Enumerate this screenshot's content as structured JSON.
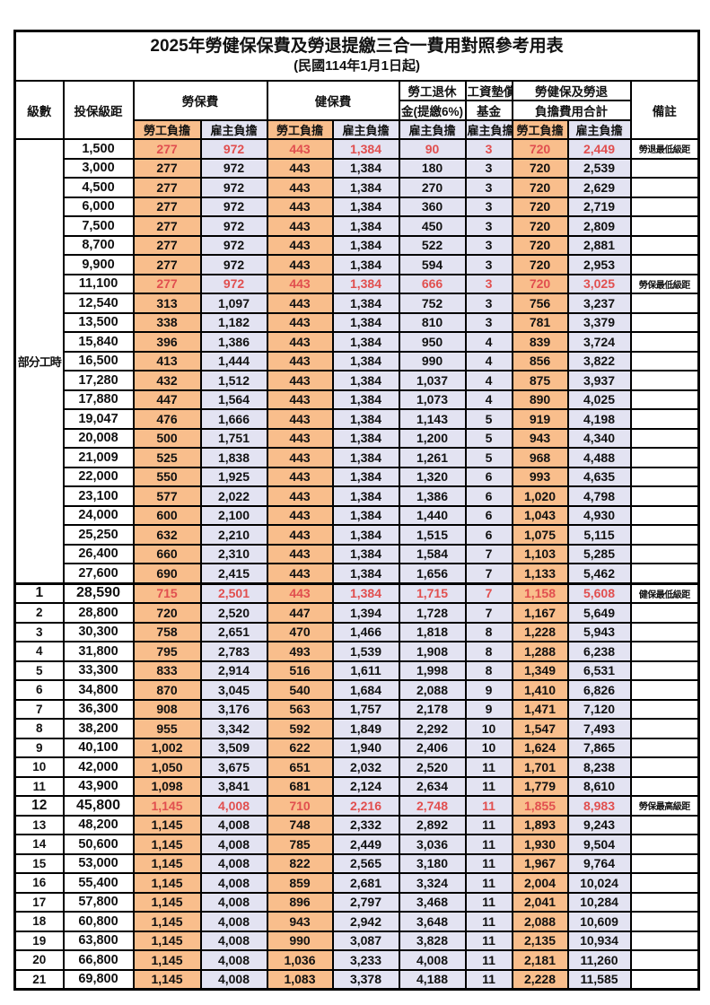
{
  "title": "2025年勞健保保費及勞退提繳三合一費用對照參考用表",
  "subtitle": "(民國114年1月1日起)",
  "colors": {
    "employee_column_bg": "#F9BE8C",
    "employer_column_bg": "#E3E3F2",
    "highlight_text": "#E14F4F",
    "grid_border": "#000000"
  },
  "header": {
    "level": "級數",
    "bracket": "投保級距",
    "labor_insurance": "勞保費",
    "health_insurance": "健保費",
    "pension_line1": "勞工退休",
    "pension_line2": "金(提繳6%)",
    "wage_fund_line1": "工資墊償",
    "wage_fund_line2": "基金",
    "total_line1": "勞健保及勞退",
    "total_line2": "負擔費用合計",
    "remark": "備註",
    "employee": "勞工負擔",
    "employer": "雇主負擔"
  },
  "part_time_label": "部分工時",
  "rows": [
    {
      "level": "",
      "bracket": "1,500",
      "values": [
        "277",
        "972",
        "443",
        "1,384",
        "90",
        "3",
        "720",
        "2,449"
      ],
      "note": "勞退最低級距",
      "red": true,
      "bold": false
    },
    {
      "level": "",
      "bracket": "3,000",
      "values": [
        "277",
        "972",
        "443",
        "1,384",
        "180",
        "3",
        "720",
        "2,539"
      ],
      "note": "",
      "red": false,
      "bold": false
    },
    {
      "level": "",
      "bracket": "4,500",
      "values": [
        "277",
        "972",
        "443",
        "1,384",
        "270",
        "3",
        "720",
        "2,629"
      ],
      "note": "",
      "red": false,
      "bold": false
    },
    {
      "level": "",
      "bracket": "6,000",
      "values": [
        "277",
        "972",
        "443",
        "1,384",
        "360",
        "3",
        "720",
        "2,719"
      ],
      "note": "",
      "red": false,
      "bold": false
    },
    {
      "level": "",
      "bracket": "7,500",
      "values": [
        "277",
        "972",
        "443",
        "1,384",
        "450",
        "3",
        "720",
        "2,809"
      ],
      "note": "",
      "red": false,
      "bold": false
    },
    {
      "level": "",
      "bracket": "8,700",
      "values": [
        "277",
        "972",
        "443",
        "1,384",
        "522",
        "3",
        "720",
        "2,881"
      ],
      "note": "",
      "red": false,
      "bold": false
    },
    {
      "level": "",
      "bracket": "9,900",
      "values": [
        "277",
        "972",
        "443",
        "1,384",
        "594",
        "3",
        "720",
        "2,953"
      ],
      "note": "",
      "red": false,
      "bold": false
    },
    {
      "level": "",
      "bracket": "11,100",
      "values": [
        "277",
        "972",
        "443",
        "1,384",
        "666",
        "3",
        "720",
        "3,025"
      ],
      "note": "勞保最低級距",
      "red": true,
      "bold": false
    },
    {
      "level": "",
      "bracket": "12,540",
      "values": [
        "313",
        "1,097",
        "443",
        "1,384",
        "752",
        "3",
        "756",
        "3,237"
      ],
      "note": "",
      "red": false,
      "bold": false
    },
    {
      "level": "",
      "bracket": "13,500",
      "values": [
        "338",
        "1,182",
        "443",
        "1,384",
        "810",
        "3",
        "781",
        "3,379"
      ],
      "note": "",
      "red": false,
      "bold": false
    },
    {
      "level": "",
      "bracket": "15,840",
      "values": [
        "396",
        "1,386",
        "443",
        "1,384",
        "950",
        "4",
        "839",
        "3,724"
      ],
      "note": "",
      "red": false,
      "bold": false
    },
    {
      "level": "",
      "bracket": "16,500",
      "values": [
        "413",
        "1,444",
        "443",
        "1,384",
        "990",
        "4",
        "856",
        "3,822"
      ],
      "note": "",
      "red": false,
      "bold": false
    },
    {
      "level": "",
      "bracket": "17,280",
      "values": [
        "432",
        "1,512",
        "443",
        "1,384",
        "1,037",
        "4",
        "875",
        "3,937"
      ],
      "note": "",
      "red": false,
      "bold": false
    },
    {
      "level": "",
      "bracket": "17,880",
      "values": [
        "447",
        "1,564",
        "443",
        "1,384",
        "1,073",
        "4",
        "890",
        "4,025"
      ],
      "note": "",
      "red": false,
      "bold": false
    },
    {
      "level": "",
      "bracket": "19,047",
      "values": [
        "476",
        "1,666",
        "443",
        "1,384",
        "1,143",
        "5",
        "919",
        "4,198"
      ],
      "note": "",
      "red": false,
      "bold": false
    },
    {
      "level": "",
      "bracket": "20,008",
      "values": [
        "500",
        "1,751",
        "443",
        "1,384",
        "1,200",
        "5",
        "943",
        "4,340"
      ],
      "note": "",
      "red": false,
      "bold": false
    },
    {
      "level": "",
      "bracket": "21,009",
      "values": [
        "525",
        "1,838",
        "443",
        "1,384",
        "1,261",
        "5",
        "968",
        "4,488"
      ],
      "note": "",
      "red": false,
      "bold": false
    },
    {
      "level": "",
      "bracket": "22,000",
      "values": [
        "550",
        "1,925",
        "443",
        "1,384",
        "1,320",
        "6",
        "993",
        "4,635"
      ],
      "note": "",
      "red": false,
      "bold": false
    },
    {
      "level": "",
      "bracket": "23,100",
      "values": [
        "577",
        "2,022",
        "443",
        "1,384",
        "1,386",
        "6",
        "1,020",
        "4,798"
      ],
      "note": "",
      "red": false,
      "bold": false
    },
    {
      "level": "",
      "bracket": "24,000",
      "values": [
        "600",
        "2,100",
        "443",
        "1,384",
        "1,440",
        "6",
        "1,043",
        "4,930"
      ],
      "note": "",
      "red": false,
      "bold": false
    },
    {
      "level": "",
      "bracket": "25,250",
      "values": [
        "632",
        "2,210",
        "443",
        "1,384",
        "1,515",
        "6",
        "1,075",
        "5,115"
      ],
      "note": "",
      "red": false,
      "bold": false
    },
    {
      "level": "",
      "bracket": "26,400",
      "values": [
        "660",
        "2,310",
        "443",
        "1,384",
        "1,584",
        "7",
        "1,103",
        "5,285"
      ],
      "note": "",
      "red": false,
      "bold": false
    },
    {
      "level": "",
      "bracket": "27,600",
      "values": [
        "690",
        "2,415",
        "443",
        "1,384",
        "1,656",
        "7",
        "1,133",
        "5,462"
      ],
      "note": "",
      "red": false,
      "bold": false
    },
    {
      "level": "1",
      "bracket": "28,590",
      "values": [
        "715",
        "2,501",
        "443",
        "1,384",
        "1,715",
        "7",
        "1,158",
        "5,608"
      ],
      "note": "健保最低級距",
      "red": true,
      "bold": true
    },
    {
      "level": "2",
      "bracket": "28,800",
      "values": [
        "720",
        "2,520",
        "447",
        "1,394",
        "1,728",
        "7",
        "1,167",
        "5,649"
      ],
      "note": "",
      "red": false,
      "bold": false
    },
    {
      "level": "3",
      "bracket": "30,300",
      "values": [
        "758",
        "2,651",
        "470",
        "1,466",
        "1,818",
        "8",
        "1,228",
        "5,943"
      ],
      "note": "",
      "red": false,
      "bold": false
    },
    {
      "level": "4",
      "bracket": "31,800",
      "values": [
        "795",
        "2,783",
        "493",
        "1,539",
        "1,908",
        "8",
        "1,288",
        "6,238"
      ],
      "note": "",
      "red": false,
      "bold": false
    },
    {
      "level": "5",
      "bracket": "33,300",
      "values": [
        "833",
        "2,914",
        "516",
        "1,611",
        "1,998",
        "8",
        "1,349",
        "6,531"
      ],
      "note": "",
      "red": false,
      "bold": false
    },
    {
      "level": "6",
      "bracket": "34,800",
      "values": [
        "870",
        "3,045",
        "540",
        "1,684",
        "2,088",
        "9",
        "1,410",
        "6,826"
      ],
      "note": "",
      "red": false,
      "bold": false
    },
    {
      "level": "7",
      "bracket": "36,300",
      "values": [
        "908",
        "3,176",
        "563",
        "1,757",
        "2,178",
        "9",
        "1,471",
        "7,120"
      ],
      "note": "",
      "red": false,
      "bold": false
    },
    {
      "level": "8",
      "bracket": "38,200",
      "values": [
        "955",
        "3,342",
        "592",
        "1,849",
        "2,292",
        "10",
        "1,547",
        "7,493"
      ],
      "note": "",
      "red": false,
      "bold": false
    },
    {
      "level": "9",
      "bracket": "40,100",
      "values": [
        "1,002",
        "3,509",
        "622",
        "1,940",
        "2,406",
        "10",
        "1,624",
        "7,865"
      ],
      "note": "",
      "red": false,
      "bold": false
    },
    {
      "level": "10",
      "bracket": "42,000",
      "values": [
        "1,050",
        "3,675",
        "651",
        "2,032",
        "2,520",
        "11",
        "1,701",
        "8,238"
      ],
      "note": "",
      "red": false,
      "bold": false
    },
    {
      "level": "11",
      "bracket": "43,900",
      "values": [
        "1,098",
        "3,841",
        "681",
        "2,124",
        "2,634",
        "11",
        "1,779",
        "8,610"
      ],
      "note": "",
      "red": false,
      "bold": false
    },
    {
      "level": "12",
      "bracket": "45,800",
      "values": [
        "1,145",
        "4,008",
        "710",
        "2,216",
        "2,748",
        "11",
        "1,855",
        "8,983"
      ],
      "note": "勞保最高級距",
      "red": true,
      "bold": true
    },
    {
      "level": "13",
      "bracket": "48,200",
      "values": [
        "1,145",
        "4,008",
        "748",
        "2,332",
        "2,892",
        "11",
        "1,893",
        "9,243"
      ],
      "note": "",
      "red": false,
      "bold": false
    },
    {
      "level": "14",
      "bracket": "50,600",
      "values": [
        "1,145",
        "4,008",
        "785",
        "2,449",
        "3,036",
        "11",
        "1,930",
        "9,504"
      ],
      "note": "",
      "red": false,
      "bold": false
    },
    {
      "level": "15",
      "bracket": "53,000",
      "values": [
        "1,145",
        "4,008",
        "822",
        "2,565",
        "3,180",
        "11",
        "1,967",
        "9,764"
      ],
      "note": "",
      "red": false,
      "bold": false
    },
    {
      "level": "16",
      "bracket": "55,400",
      "values": [
        "1,145",
        "4,008",
        "859",
        "2,681",
        "3,324",
        "11",
        "2,004",
        "10,024"
      ],
      "note": "",
      "red": false,
      "bold": false
    },
    {
      "level": "17",
      "bracket": "57,800",
      "values": [
        "1,145",
        "4,008",
        "896",
        "2,797",
        "3,468",
        "11",
        "2,041",
        "10,284"
      ],
      "note": "",
      "red": false,
      "bold": false
    },
    {
      "level": "18",
      "bracket": "60,800",
      "values": [
        "1,145",
        "4,008",
        "943",
        "2,942",
        "3,648",
        "11",
        "2,088",
        "10,609"
      ],
      "note": "",
      "red": false,
      "bold": false
    },
    {
      "level": "19",
      "bracket": "63,800",
      "values": [
        "1,145",
        "4,008",
        "990",
        "3,087",
        "3,828",
        "11",
        "2,135",
        "10,934"
      ],
      "note": "",
      "red": false,
      "bold": false
    },
    {
      "level": "20",
      "bracket": "66,800",
      "values": [
        "1,145",
        "4,008",
        "1,036",
        "3,233",
        "4,008",
        "11",
        "2,181",
        "11,260"
      ],
      "note": "",
      "red": false,
      "bold": false
    },
    {
      "level": "21",
      "bracket": "69,800",
      "values": [
        "1,145",
        "4,008",
        "1,083",
        "3,378",
        "4,188",
        "11",
        "2,228",
        "11,585"
      ],
      "note": "",
      "red": false,
      "bold": false
    }
  ]
}
